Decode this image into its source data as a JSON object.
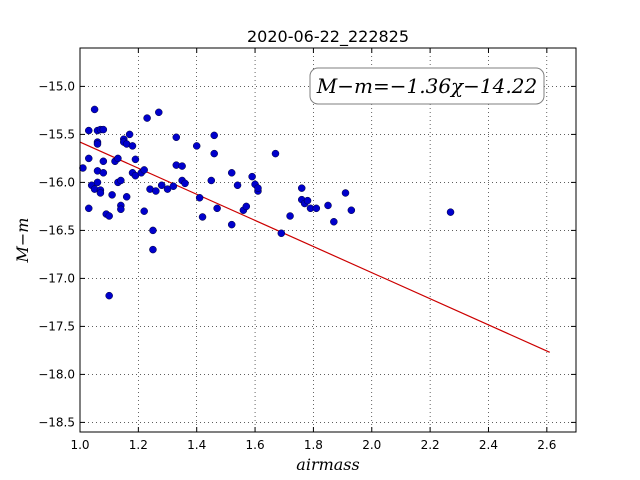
{
  "chart_data": {
    "type": "scatter",
    "title": "2020-06-22_222825",
    "xlabel": "airmass",
    "ylabel": "M−m",
    "annotation": "M−m=−1.36χ−14.22",
    "xlim": [
      1.0,
      2.7
    ],
    "ylim": [
      -18.6,
      -14.6
    ],
    "xticks": [
      1.0,
      1.2,
      1.4,
      1.6,
      1.8,
      2.0,
      2.2,
      2.4,
      2.6
    ],
    "xtick_labels": [
      "1.0",
      "1.2",
      "1.4",
      "1.6",
      "1.8",
      "2.0",
      "2.2",
      "2.4",
      "2.6"
    ],
    "yticks": [
      -15.0,
      -15.5,
      -16.0,
      -16.5,
      -17.0,
      -17.5,
      -18.0,
      -18.5
    ],
    "ytick_labels": [
      "−15.0",
      "−15.5",
      "−16.0",
      "−16.5",
      "−17.0",
      "−17.5",
      "−18.0",
      "−18.5"
    ],
    "grid": true,
    "point_color": "#0000cc",
    "fit_color": "#cc0000",
    "fit": {
      "slope": -1.36,
      "intercept": -14.22,
      "x_range": [
        1.0,
        2.61
      ]
    },
    "points": [
      [
        1.01,
        -15.85
      ],
      [
        1.03,
        -15.46
      ],
      [
        1.03,
        -15.75
      ],
      [
        1.03,
        -16.27
      ],
      [
        1.04,
        -16.03
      ],
      [
        1.05,
        -15.24
      ],
      [
        1.05,
        -16.07
      ],
      [
        1.06,
        -15.58
      ],
      [
        1.06,
        -15.6
      ],
      [
        1.06,
        -15.46
      ],
      [
        1.06,
        -15.88
      ],
      [
        1.06,
        -16.0
      ],
      [
        1.07,
        -16.08
      ],
      [
        1.07,
        -16.11
      ],
      [
        1.07,
        -15.45
      ],
      [
        1.08,
        -15.78
      ],
      [
        1.08,
        -15.9
      ],
      [
        1.08,
        -15.45
      ],
      [
        1.09,
        -16.33
      ],
      [
        1.1,
        -16.35
      ],
      [
        1.1,
        -17.18
      ],
      [
        1.11,
        -16.13
      ],
      [
        1.12,
        -15.78
      ],
      [
        1.13,
        -15.75
      ],
      [
        1.13,
        -16.0
      ],
      [
        1.14,
        -15.98
      ],
      [
        1.14,
        -16.24
      ],
      [
        1.14,
        -16.28
      ],
      [
        1.15,
        -15.55
      ],
      [
        1.15,
        -15.58
      ],
      [
        1.16,
        -15.6
      ],
      [
        1.16,
        -16.15
      ],
      [
        1.17,
        -15.5
      ],
      [
        1.18,
        -15.9
      ],
      [
        1.18,
        -15.62
      ],
      [
        1.19,
        -15.93
      ],
      [
        1.19,
        -15.76
      ],
      [
        1.21,
        -15.9
      ],
      [
        1.22,
        -15.87
      ],
      [
        1.22,
        -16.3
      ],
      [
        1.23,
        -15.33
      ],
      [
        1.24,
        -16.07
      ],
      [
        1.25,
        -16.5
      ],
      [
        1.25,
        -16.7
      ],
      [
        1.26,
        -16.09
      ],
      [
        1.27,
        -15.27
      ],
      [
        1.28,
        -16.03
      ],
      [
        1.3,
        -16.07
      ],
      [
        1.32,
        -16.04
      ],
      [
        1.33,
        -15.82
      ],
      [
        1.33,
        -15.53
      ],
      [
        1.35,
        -15.83
      ],
      [
        1.35,
        -15.98
      ],
      [
        1.36,
        -16.01
      ],
      [
        1.4,
        -15.62
      ],
      [
        1.41,
        -16.16
      ],
      [
        1.42,
        -16.36
      ],
      [
        1.45,
        -15.98
      ],
      [
        1.46,
        -15.51
      ],
      [
        1.46,
        -15.7
      ],
      [
        1.47,
        -16.27
      ],
      [
        1.52,
        -15.9
      ],
      [
        1.52,
        -16.44
      ],
      [
        1.54,
        -16.03
      ],
      [
        1.56,
        -16.29
      ],
      [
        1.57,
        -16.25
      ],
      [
        1.59,
        -15.94
      ],
      [
        1.6,
        -16.02
      ],
      [
        1.61,
        -16.09
      ],
      [
        1.61,
        -16.06
      ],
      [
        1.67,
        -15.7
      ],
      [
        1.69,
        -16.53
      ],
      [
        1.72,
        -16.35
      ],
      [
        1.76,
        -16.18
      ],
      [
        1.76,
        -16.06
      ],
      [
        1.77,
        -16.22
      ],
      [
        1.78,
        -16.19
      ],
      [
        1.79,
        -16.27
      ],
      [
        1.81,
        -16.27
      ],
      [
        1.85,
        -16.24
      ],
      [
        1.87,
        -16.41
      ],
      [
        1.91,
        -16.11
      ],
      [
        1.93,
        -16.29
      ],
      [
        2.27,
        -16.31
      ]
    ]
  }
}
